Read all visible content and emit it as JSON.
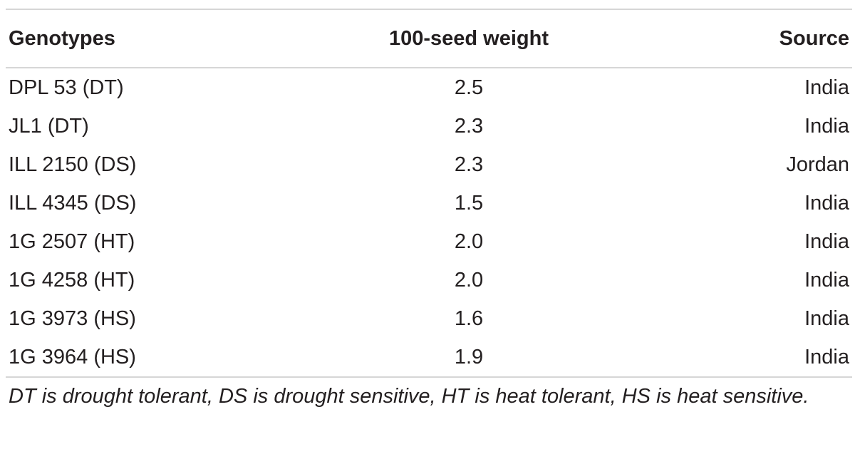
{
  "table": {
    "columns": [
      "Genotypes",
      "100-seed weight",
      "Source"
    ],
    "rows": [
      [
        "DPL 53 (DT)",
        "2.5",
        "India"
      ],
      [
        "JL1 (DT)",
        "2.3",
        "India"
      ],
      [
        "ILL 2150 (DS)",
        "2.3",
        "Jordan"
      ],
      [
        "ILL 4345 (DS)",
        "1.5",
        "India"
      ],
      [
        "1G 2507 (HT)",
        "2.0",
        "India"
      ],
      [
        "1G 4258 (HT)",
        "2.0",
        "India"
      ],
      [
        "1G 3973 (HS)",
        "1.6",
        "India"
      ],
      [
        "1G 3964 (HS)",
        "1.9",
        "India"
      ]
    ],
    "footnote": "DT is drought tolerant, DS is drought sensitive, HT is heat tolerant, HS is heat sensitive."
  }
}
